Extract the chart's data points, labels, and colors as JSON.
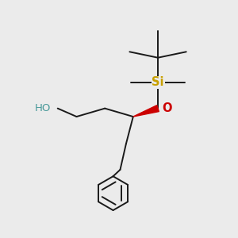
{
  "background_color": "#ebebeb",
  "bond_color": "#1a1a1a",
  "si_color": "#c8a000",
  "o_color": "#cc0000",
  "ho_color": "#4a9a9a",
  "wedge_color": "#cc0000",
  "si_label": "Si",
  "o_label": "O",
  "ho_label": "HO",
  "line_width": 1.4,
  "fig_size": [
    3.0,
    3.0
  ],
  "dpi": 100
}
